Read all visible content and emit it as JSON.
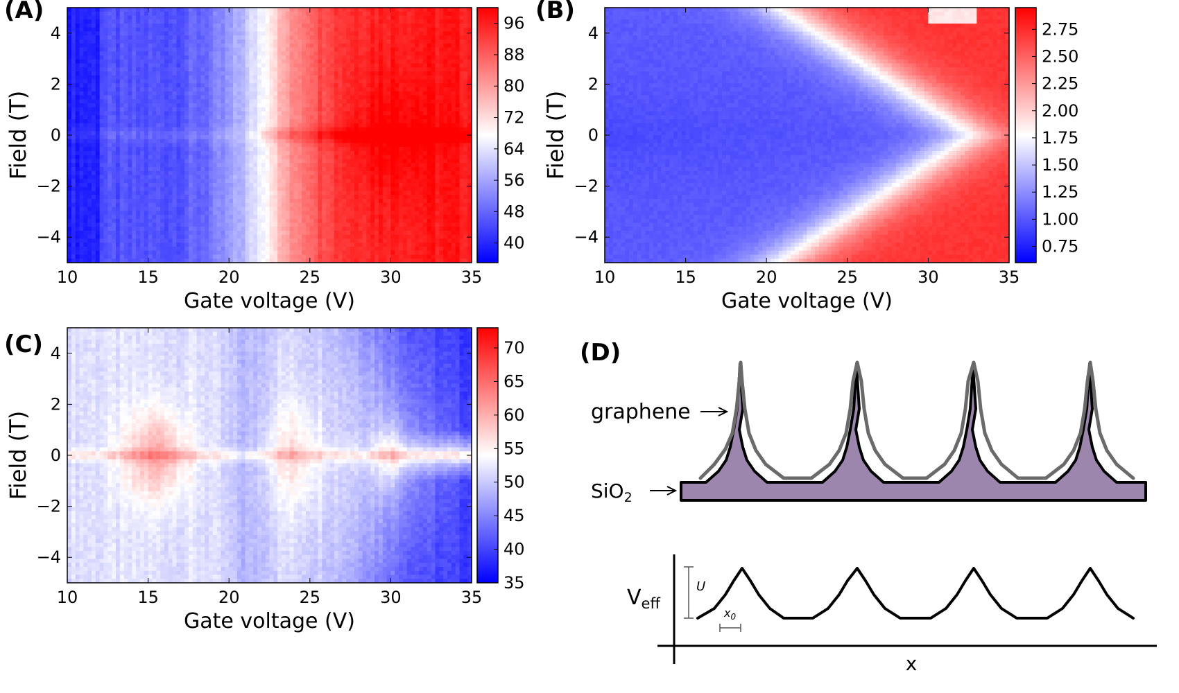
{
  "chart_data": [
    {
      "type": "heatmap",
      "panel_label": "(A)",
      "xlabel": "Gate voltage (V)",
      "ylabel": "Field (T)",
      "xlim": [
        10,
        35
      ],
      "ylim": [
        -5,
        5
      ],
      "x_ticks": [
        10,
        15,
        20,
        25,
        30,
        35
      ],
      "y_ticks": [
        4,
        2,
        0,
        -2,
        -4
      ],
      "colorbar_range": [
        35,
        100
      ],
      "colorbar_ticks": [
        96,
        88,
        80,
        72,
        64,
        56,
        48,
        40
      ],
      "colormap": [
        "#0000ff",
        "#ffffff",
        "#ff0000"
      ],
      "features": {
        "low_gate_level": 40,
        "high_gate_level": 88,
        "zero_field_peak_at": 30
      }
    },
    {
      "type": "heatmap",
      "panel_label": "(B)",
      "xlabel": "Gate voltage (V)",
      "ylabel": "Field (T)",
      "xlim": [
        10,
        35
      ],
      "ylim": [
        -5,
        5
      ],
      "x_ticks": [
        10,
        15,
        20,
        25,
        30,
        35
      ],
      "y_ticks": [
        4,
        2,
        0,
        -2,
        -4
      ],
      "colorbar_range": [
        0.6,
        2.95
      ],
      "colorbar_ticks": [
        2.75,
        2.5,
        2.25,
        2.0,
        1.75,
        1.5,
        1.25,
        1.0,
        0.75
      ],
      "colorbar_tick_labels": [
        "2.75",
        "2.50",
        "2.25",
        "2.00",
        "1.75",
        "1.50",
        "1.25",
        "1.00",
        "0.75"
      ],
      "colormap": [
        "#0000ff",
        "#ffffff",
        "#ff0000"
      ],
      "features": {
        "fan_boundary": [
          [
            21,
            5
          ],
          [
            24,
            4
          ],
          [
            27,
            3
          ],
          [
            30,
            2
          ],
          [
            32,
            1
          ],
          [
            33,
            0
          ]
        ],
        "low_level": 0.7,
        "high_level": 2.75
      }
    },
    {
      "type": "heatmap",
      "panel_label": "(C)",
      "xlabel": "Gate voltage (V)",
      "ylabel": "Field (T)",
      "xlim": [
        10,
        35
      ],
      "ylim": [
        -5,
        5
      ],
      "x_ticks": [
        10,
        15,
        20,
        25,
        30,
        35
      ],
      "y_ticks": [
        4,
        2,
        0,
        -2,
        -4
      ],
      "colorbar_range": [
        35,
        73
      ],
      "colorbar_ticks": [
        70,
        65,
        60,
        55,
        50,
        45,
        40,
        35
      ],
      "colormap": [
        "#0000ff",
        "#ffffff",
        "#ff0000"
      ],
      "features": {
        "hot_spots_gate": [
          15.5,
          24,
          30
        ],
        "cold_region": "top-right and bottom-right"
      }
    }
  ],
  "diagram": {
    "panel_label": "(D)",
    "graphene_label": "graphene",
    "sio2_label_main": "SiO",
    "sio2_label_sub": "2",
    "veff_label_main": "V",
    "veff_label_sub": "eff",
    "u_label": "U",
    "x0_label_main": "x",
    "x0_label_sub": "0",
    "x_axis_label": "x",
    "arrow_glyph": "⟶",
    "colors": {
      "substrate_fill": "#9d86ad",
      "graphene_stroke": "#6a6a6a",
      "outline": "#000000"
    }
  }
}
